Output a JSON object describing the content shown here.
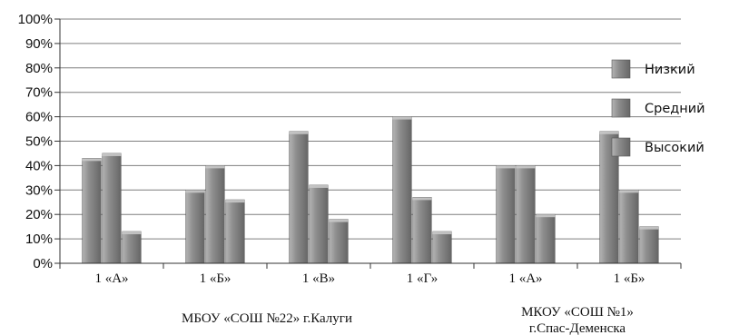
{
  "chart_data": {
    "type": "bar",
    "categories": [
      "1 «А»",
      "1 «Б»",
      "1 «В»",
      "1 «Г»",
      "1 «А»",
      "1 «Б»"
    ],
    "groups": [
      {
        "label": "МБОУ «СОШ №22» г.Калуги",
        "categories": [
          0,
          1,
          2,
          3
        ]
      },
      {
        "label_lines": [
          "МКОУ «СОШ №1»",
          "г.Спас-Деменска"
        ],
        "categories": [
          4,
          5
        ]
      }
    ],
    "series": [
      {
        "name": "Низкий",
        "values": [
          43,
          30,
          54,
          60,
          40,
          54
        ]
      },
      {
        "name": "Средний",
        "values": [
          45,
          40,
          32,
          27,
          40,
          30
        ]
      },
      {
        "name": "Высокий",
        "values": [
          13,
          26,
          18,
          13,
          20,
          15
        ]
      }
    ],
    "yticks": [
      "0%",
      "10%",
      "20%",
      "30%",
      "40%",
      "50%",
      "60%",
      "70%",
      "80%",
      "90%",
      "100%"
    ],
    "ylim": [
      0,
      100
    ],
    "grid": true,
    "legend": "right",
    "colors": {
      "bar_dark": "#6e6e6e",
      "bar_mid": "#8f8f8f",
      "bar_light": "#b4b4b4",
      "grid": "#7f7f7f",
      "axis": "#333333"
    }
  }
}
